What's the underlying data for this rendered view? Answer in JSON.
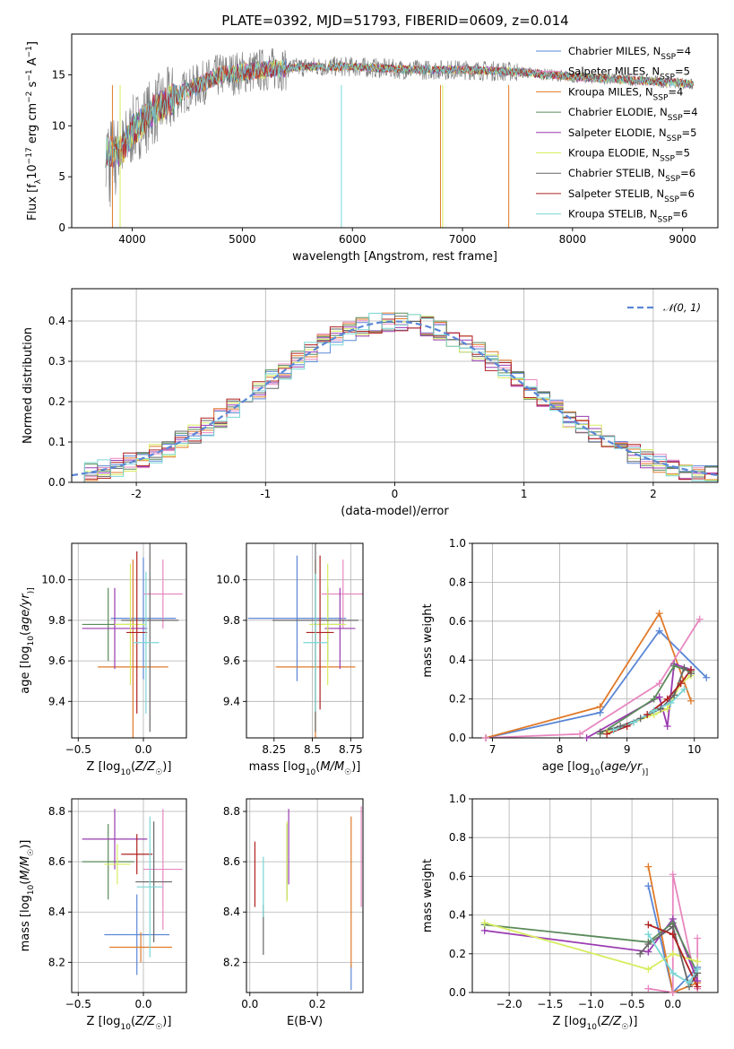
{
  "page": {
    "title": "PLATE=0392, MJD=51793, FIBERID=0609, z=0.014"
  },
  "colors": {
    "Chabrier MILES": "#5b87d6",
    "Salpeter MILES": "#e887c0",
    "Kroupa MILES": "#e07a2a",
    "Chabrier ELODIE": "#5a8a5a",
    "Salpeter ELODIE": "#9a3bb0",
    "Kroupa ELODIE": "#d8ec60",
    "Chabrier STELIB": "#666666",
    "Salpeter STELIB": "#b02020",
    "Kroupa STELIB": "#7ad6d6"
  },
  "chart_data": [
    {
      "id": "spectrum",
      "type": "line",
      "xlabel": "wavelength [Angstrom, rest frame]",
      "ylabel_parts": [
        "Flux [f",
        "λ",
        "10",
        "−17",
        " erg cm",
        "−2",
        " s",
        "−1",
        " A",
        "−1",
        "]"
      ],
      "xlim": [
        3450,
        9320
      ],
      "ylim": [
        0,
        19
      ],
      "xticks": [
        4000,
        5000,
        6000,
        7000,
        8000,
        9000
      ],
      "yticks": [
        0,
        5,
        10,
        15
      ],
      "legend_position": "top-right",
      "legend": [
        {
          "base": "Chabrier MILES, N",
          "sub": "SSP",
          "tail": "=4"
        },
        {
          "base": "Salpeter MILES, N",
          "sub": "SSP",
          "tail": "=5"
        },
        {
          "base": "Kroupa MILES, N",
          "sub": "SSP",
          "tail": "=4"
        },
        {
          "base": "Chabrier ELODIE, N",
          "sub": "SSP",
          "tail": "=4"
        },
        {
          "base": "Salpeter ELODIE, N",
          "sub": "SSP",
          "tail": "=5"
        },
        {
          "base": "Kroupa ELODIE, N",
          "sub": "SSP",
          "tail": "=5"
        },
        {
          "base": "Chabrier STELIB, N",
          "sub": "SSP",
          "tail": "=6"
        },
        {
          "base": "Salpeter STELIB, N",
          "sub": "SSP",
          "tail": "=6"
        },
        {
          "base": "Kroupa STELIB, N",
          "sub": "SSP",
          "tail": "=6"
        }
      ],
      "continuum_shape": {
        "wavelength": [
          3760,
          3900,
          4000,
          4200,
          4500,
          4800,
          5200,
          5600,
          6000,
          6500,
          7000,
          7500,
          8000,
          8500,
          9000,
          9100
        ],
        "flux": [
          7.5,
          7.5,
          9.5,
          11.5,
          13.5,
          15.0,
          15.5,
          15.8,
          15.8,
          15.5,
          15.5,
          15.3,
          14.8,
          14.5,
          14.2,
          14.0
        ]
      },
      "data_range": [
        3760,
        9100
      ]
    },
    {
      "id": "residuals",
      "type": "step",
      "xlabel": "(data-model)/error",
      "ylabel": "Normed distribution",
      "xlim": [
        -2.5,
        2.5
      ],
      "ylim": [
        0,
        0.48
      ],
      "xticks": [
        -2,
        -1,
        0,
        1,
        2
      ],
      "yticks": [
        0.0,
        0.1,
        0.2,
        0.3,
        0.4
      ],
      "grid": true,
      "legend_position": "top-right",
      "reference": {
        "label": "𝒩(0, 1)",
        "mean": 0,
        "sigma": 1
      },
      "bin_width": 0.1
    },
    {
      "id": "z-age",
      "type": "errorbar",
      "xlabel": "Z [log10(Z/Z☉)]",
      "xlabel_parts": [
        "Z [log",
        "10",
        "(",
        "Z/Z",
        "☉",
        ")]"
      ],
      "ylabel_parts": [
        "age  [log",
        "10",
        "(",
        "age/yr",
        ")]"
      ],
      "xlim": [
        -0.55,
        0.33
      ],
      "ylim": [
        9.22,
        10.18
      ],
      "xticks": [
        -0.5,
        0.0
      ],
      "xtick_labels": [
        "−0.5",
        "0.0"
      ],
      "yticks": [
        9.4,
        9.6,
        9.8,
        10.0
      ],
      "grid": true,
      "points": [
        {
          "model": "Chabrier MILES",
          "x": 0.0,
          "xerr": 0.25,
          "y": 9.81,
          "yerr": 0.3
        },
        {
          "model": "Salpeter MILES",
          "x": 0.15,
          "xerr": 0.15,
          "y": 9.93,
          "yerr": 0.17
        },
        {
          "model": "Kroupa MILES",
          "x": -0.08,
          "xerr": 0.27,
          "y": 9.57,
          "yerr": 0.53
        },
        {
          "model": "Chabrier ELODIE",
          "x": -0.27,
          "xerr": 0.2,
          "y": 9.78,
          "yerr": 0.18
        },
        {
          "model": "Salpeter ELODIE",
          "x": -0.22,
          "xerr": 0.25,
          "y": 9.76,
          "yerr": 0.2
        },
        {
          "model": "Kroupa ELODIE",
          "x": -0.1,
          "xerr": 0.12,
          "y": 9.78,
          "yerr": 0.3
        },
        {
          "model": "Chabrier STELIB",
          "x": 0.05,
          "xerr": 0.22,
          "y": 9.8,
          "yerr": 0.55
        },
        {
          "model": "Salpeter STELIB",
          "x": -0.05,
          "xerr": 0.08,
          "y": 9.74,
          "yerr": 0.4
        },
        {
          "model": "Kroupa STELIB",
          "x": 0.02,
          "xerr": 0.1,
          "y": 9.69,
          "yerr": 0.35
        }
      ]
    },
    {
      "id": "mass-age",
      "type": "errorbar",
      "xlabel_parts": [
        "mass [log",
        "10",
        "(",
        "M/M",
        "☉",
        ")]"
      ],
      "xlim": [
        8.07,
        8.83
      ],
      "ylim": [
        9.22,
        10.18
      ],
      "xticks": [
        8.25,
        8.5,
        8.75
      ],
      "yticks": [
        9.4,
        9.6,
        9.8,
        10.0
      ],
      "grid": true,
      "points": [
        {
          "model": "Chabrier MILES",
          "x": 8.4,
          "xerr": 0.32,
          "y": 9.81,
          "yerr": 0.31
        },
        {
          "model": "Salpeter MILES",
          "x": 8.7,
          "xerr": 0.14,
          "y": 9.93,
          "yerr": 0.17
        },
        {
          "model": "Kroupa MILES",
          "x": 8.52,
          "xerr": 0.26,
          "y": 9.57,
          "yerr": 0.53
        },
        {
          "model": "Chabrier ELODIE",
          "x": 8.6,
          "xerr": 0.1,
          "y": 9.78,
          "yerr": 0.18
        },
        {
          "model": "Salpeter ELODIE",
          "x": 8.68,
          "xerr": 0.1,
          "y": 9.76,
          "yerr": 0.2
        },
        {
          "model": "Kroupa ELODIE",
          "x": 8.6,
          "xerr": 0.12,
          "y": 9.78,
          "yerr": 0.3
        },
        {
          "model": "Chabrier STELIB",
          "x": 8.52,
          "xerr": 0.28,
          "y": 9.8,
          "yerr": 0.55
        },
        {
          "model": "Salpeter STELIB",
          "x": 8.55,
          "xerr": 0.09,
          "y": 9.74,
          "yerr": 0.38
        },
        {
          "model": "Kroupa STELIB",
          "x": 8.52,
          "xerr": 0.08,
          "y": 9.69,
          "yerr": 0.34
        }
      ]
    },
    {
      "id": "age-weight",
      "type": "line",
      "xlabel_parts": [
        "age  [log",
        "10",
        "(",
        "age/yr",
        ")]"
      ],
      "ylabel": "mass weight",
      "xlim": [
        6.7,
        10.35
      ],
      "ylim": [
        0,
        1
      ],
      "xticks": [
        7,
        8,
        9,
        10
      ],
      "yticks": [
        0.0,
        0.2,
        0.4,
        0.6,
        0.8,
        1.0
      ],
      "grid": true,
      "series": [
        {
          "model": "Chabrier MILES",
          "x": [
            6.9,
            8.6,
            9.48,
            10.18
          ],
          "y": [
            0.0,
            0.13,
            0.55,
            0.31
          ]
        },
        {
          "model": "Kroupa MILES",
          "x": [
            6.9,
            8.6,
            9.48,
            9.95
          ],
          "y": [
            0.0,
            0.16,
            0.64,
            0.19
          ]
        },
        {
          "model": "Salpeter MILES",
          "x": [
            6.9,
            8.3,
            9.48,
            10.08
          ],
          "y": [
            0.0,
            0.02,
            0.28,
            0.61
          ]
        },
        {
          "model": "Salpeter ELODIE",
          "x": [
            8.4,
            9.48,
            9.6,
            9.7,
            9.95
          ],
          "y": [
            0.0,
            0.21,
            0.06,
            0.38,
            0.35
          ]
        },
        {
          "model": "Chabrier ELODIE",
          "x": [
            8.6,
            9.4,
            9.7,
            9.95
          ],
          "y": [
            0.02,
            0.2,
            0.37,
            0.34
          ]
        },
        {
          "model": "Kroupa ELODIE",
          "x": [
            8.7,
            9.4,
            9.6,
            9.8,
            9.95
          ],
          "y": [
            0.03,
            0.12,
            0.15,
            0.28,
            0.32
          ]
        },
        {
          "model": "Chabrier STELIB",
          "x": [
            8.6,
            8.9,
            9.2,
            9.5,
            9.7,
            9.85,
            9.95
          ],
          "y": [
            0.03,
            0.06,
            0.1,
            0.15,
            0.22,
            0.36,
            0.33
          ]
        },
        {
          "model": "Salpeter STELIB",
          "x": [
            8.7,
            9.0,
            9.3,
            9.6,
            9.8,
            9.95
          ],
          "y": [
            0.02,
            0.06,
            0.12,
            0.2,
            0.28,
            0.35
          ]
        },
        {
          "model": "Kroupa STELIB",
          "x": [
            8.8,
            9.1,
            9.4,
            9.65,
            9.85
          ],
          "y": [
            0.04,
            0.08,
            0.14,
            0.18,
            0.25
          ]
        }
      ]
    },
    {
      "id": "z-mass",
      "type": "errorbar",
      "xlabel_parts": [
        "Z [log",
        "10",
        "(",
        "Z/Z",
        "☉",
        ")]"
      ],
      "ylabel_parts": [
        "mass [log",
        "10",
        "(",
        "M/M",
        "☉",
        ")]"
      ],
      "xlim": [
        -0.55,
        0.33
      ],
      "ylim": [
        8.08,
        8.85
      ],
      "xticks": [
        -0.5,
        0.0
      ],
      "xtick_labels": [
        "−0.5",
        "0.0"
      ],
      "yticks": [
        8.2,
        8.4,
        8.6,
        8.8
      ],
      "grid": true,
      "points": [
        {
          "model": "Chabrier MILES",
          "x": -0.05,
          "xerr": 0.25,
          "y": 8.31,
          "yerr": 0.16
        },
        {
          "model": "Salpeter MILES",
          "x": 0.15,
          "xerr": 0.15,
          "y": 8.57,
          "yerr": 0.24
        },
        {
          "model": "Kroupa MILES",
          "x": -0.02,
          "xerr": 0.24,
          "y": 8.26,
          "yerr": 0.06
        },
        {
          "model": "Chabrier ELODIE",
          "x": -0.27,
          "xerr": 0.2,
          "y": 8.6,
          "yerr": 0.15
        },
        {
          "model": "Salpeter ELODIE",
          "x": -0.22,
          "xerr": 0.25,
          "y": 8.69,
          "yerr": 0.12
        },
        {
          "model": "Kroupa ELODIE",
          "x": -0.2,
          "xerr": 0.1,
          "y": 8.59,
          "yerr": 0.08
        },
        {
          "model": "Chabrier STELIB",
          "x": 0.08,
          "xerr": 0.14,
          "y": 8.52,
          "yerr": 0.24
        },
        {
          "model": "Salpeter STELIB",
          "x": -0.05,
          "xerr": 0.12,
          "y": 8.63,
          "yerr": 0.08
        },
        {
          "model": "Kroupa STELIB",
          "x": 0.05,
          "xerr": 0.1,
          "y": 8.5,
          "yerr": 0.28
        }
      ]
    },
    {
      "id": "ebv-mass",
      "type": "errorbar",
      "xlabel": "E(B-V)",
      "xlim": [
        -0.01,
        0.335
      ],
      "ylim": [
        8.08,
        8.85
      ],
      "xticks": [
        0.0,
        0.2
      ],
      "xtick_labels": [
        "0.0",
        "0.2"
      ],
      "yticks": [
        8.2,
        8.4,
        8.6,
        8.8
      ],
      "grid": true,
      "points": [
        {
          "model": "Chabrier MILES",
          "x": 0.3,
          "xerr": 0,
          "y": 8.14,
          "yerr": 0.05
        },
        {
          "model": "Salpeter MILES",
          "x": 0.33,
          "xerr": 0,
          "y": 8.62,
          "yerr": 0.2
        },
        {
          "model": "Kroupa MILES",
          "x": 0.3,
          "xerr": 0,
          "y": 8.48,
          "yerr": 0.3
        },
        {
          "model": "Chabrier ELODIE",
          "x": 0.11,
          "xerr": 0,
          "y": 8.6,
          "yerr": 0.15
        },
        {
          "model": "Salpeter ELODIE",
          "x": 0.115,
          "xerr": 0,
          "y": 8.66,
          "yerr": 0.15
        },
        {
          "model": "Kroupa ELODIE",
          "x": 0.11,
          "xerr": 0,
          "y": 8.6,
          "yerr": 0.16
        },
        {
          "model": "Chabrier STELIB",
          "x": 0.04,
          "xerr": 0,
          "y": 8.33,
          "yerr": 0.1
        },
        {
          "model": "Salpeter STELIB",
          "x": 0.015,
          "xerr": 0,
          "y": 8.55,
          "yerr": 0.13
        },
        {
          "model": "Kroupa STELIB",
          "x": 0.04,
          "xerr": 0,
          "y": 8.5,
          "yerr": 0.12
        }
      ]
    },
    {
      "id": "z-weight",
      "type": "line",
      "xlabel_parts": [
        "Z [log",
        "10",
        "(",
        "Z/Z",
        "☉",
        ")]"
      ],
      "ylabel": "mass weight",
      "xlim": [
        -2.45,
        0.55
      ],
      "ylim": [
        0,
        1
      ],
      "xticks": [
        -2.0,
        -1.5,
        -1.0,
        -0.5,
        0.0
      ],
      "xtick_labels": [
        "−2.0",
        "−1.5",
        "−1.0",
        "−0.5",
        "0.0"
      ],
      "yticks": [
        0.0,
        0.2,
        0.4,
        0.6,
        0.8,
        1.0
      ],
      "grid": true,
      "series": [
        {
          "model": "Chabrier MILES",
          "x": [
            -0.3,
            0.0,
            0.3
          ],
          "y": [
            0.55,
            0.0,
            0.13
          ]
        },
        {
          "model": "Kroupa MILES",
          "x": [
            -0.3,
            0.0,
            0.3
          ],
          "y": [
            0.65,
            0.0,
            0.05
          ]
        },
        {
          "model": "Salpeter MILES",
          "x": [
            -0.3,
            0.0,
            0.0,
            0.3,
            0.3
          ],
          "y": [
            0.02,
            0.0,
            0.61,
            0.02,
            0.28
          ]
        },
        {
          "model": "Salpeter ELODIE",
          "x": [
            -2.3,
            -0.3,
            0.0,
            0.3
          ],
          "y": [
            0.32,
            0.21,
            0.38,
            0.06
          ]
        },
        {
          "model": "Chabrier ELODIE",
          "x": [
            -2.3,
            -0.3,
            0.0,
            0.3
          ],
          "y": [
            0.35,
            0.26,
            0.36,
            0.1
          ]
        },
        {
          "model": "Kroupa ELODIE",
          "x": [
            -2.3,
            -0.3,
            0.0,
            0.3
          ],
          "y": [
            0.36,
            0.12,
            0.2,
            0.16
          ]
        },
        {
          "model": "Chabrier STELIB",
          "x": [
            -0.4,
            -0.3,
            0.0,
            0.2,
            0.3
          ],
          "y": [
            0.2,
            0.25,
            0.34,
            0.03,
            0.1
          ]
        },
        {
          "model": "Salpeter STELIB",
          "x": [
            -0.3,
            0.0,
            0.3
          ],
          "y": [
            0.35,
            0.3,
            0.03
          ]
        },
        {
          "model": "Kroupa STELIB",
          "x": [
            -0.3,
            0.0,
            0.2,
            0.3
          ],
          "y": [
            0.3,
            0.1,
            0.05,
            0.12
          ]
        }
      ]
    }
  ]
}
